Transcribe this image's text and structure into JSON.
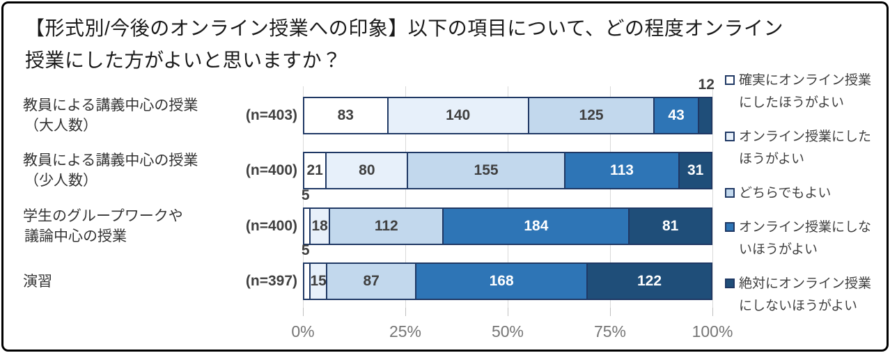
{
  "title": {
    "line1": "【形式別/今後のオンライン授業への印象】以下の項目について、どの程度オンライン",
    "line2": "授業にした方がよいと思いますか？"
  },
  "chart_data": {
    "type": "bar",
    "subtype": "horizontal-100%-stacked",
    "title": "【形式別/今後のオンライン授業への印象】以下の項目について、どの程度オンライン授業にした方がよいと思いますか？",
    "xlabel": "",
    "ylabel": "",
    "x_axis": {
      "min": 0,
      "max": 100,
      "unit": "%",
      "ticks": [
        "0%",
        "25%",
        "50%",
        "75%",
        "100%"
      ],
      "grid": true
    },
    "legend_position": "right",
    "series": [
      {
        "name": "確実にオンライン授業にしたほうがよい",
        "color": "#ffffff",
        "text_color": "#3f3f3f"
      },
      {
        "name": "オンライン授業にしたほうがよい",
        "color": "#e7f0fa",
        "text_color": "#3f3f3f"
      },
      {
        "name": "どちらでもよい",
        "color": "#c2d8ed",
        "text_color": "#3f3f3f"
      },
      {
        "name": "オンライン授業にしないほうがよい",
        "color": "#2e75b6",
        "text_color": "#ffffff"
      },
      {
        "name": "絶対にオンライン授業にしないほうがよい",
        "color": "#1f4e79",
        "text_color": "#ffffff"
      }
    ],
    "categories": [
      {
        "label_lines": [
          "教員による講義中心の授業",
          "（大人数）"
        ],
        "n_label": "(n=403)",
        "n": 403,
        "values": [
          83,
          140,
          125,
          43,
          12
        ],
        "callout_indices": [
          4
        ]
      },
      {
        "label_lines": [
          "教員による講義中心の授業",
          "（少人数）"
        ],
        "n_label": "(n=400)",
        "n": 400,
        "values": [
          21,
          80,
          155,
          113,
          31
        ],
        "callout_indices": []
      },
      {
        "label_lines": [
          "学生のグループワークや",
          "議論中心の授業"
        ],
        "n_label": "(n=400)",
        "n": 400,
        "values": [
          5,
          18,
          112,
          184,
          81
        ],
        "callout_indices": [
          0
        ]
      },
      {
        "label_lines": [
          "演習"
        ],
        "n_label": "(n=397)",
        "n": 397,
        "values": [
          5,
          15,
          87,
          168,
          122
        ],
        "callout_indices": [
          0
        ]
      }
    ],
    "colors": {
      "segment_border": "#1f3864",
      "gridline": "#d9d9d9",
      "tick": "#bfbfbf",
      "axis_label": "#757575",
      "value_label_dark": "#3f3f3f",
      "value_label_light": "#ffffff"
    }
  },
  "legend": {
    "items": [
      {
        "label": "確実にオンライン授業にしたほうがよい",
        "color": "#ffffff"
      },
      {
        "label": "オンライン授業にしたほうがよい",
        "color": "#e7f0fa"
      },
      {
        "label": "どちらでもよい",
        "color": "#c2d8ed"
      },
      {
        "label": "オンライン授業にしないほうがよい",
        "color": "#2e75b6"
      },
      {
        "label": "絶対にオンライン授業にしないほうがよい",
        "color": "#1f4e79"
      }
    ]
  }
}
